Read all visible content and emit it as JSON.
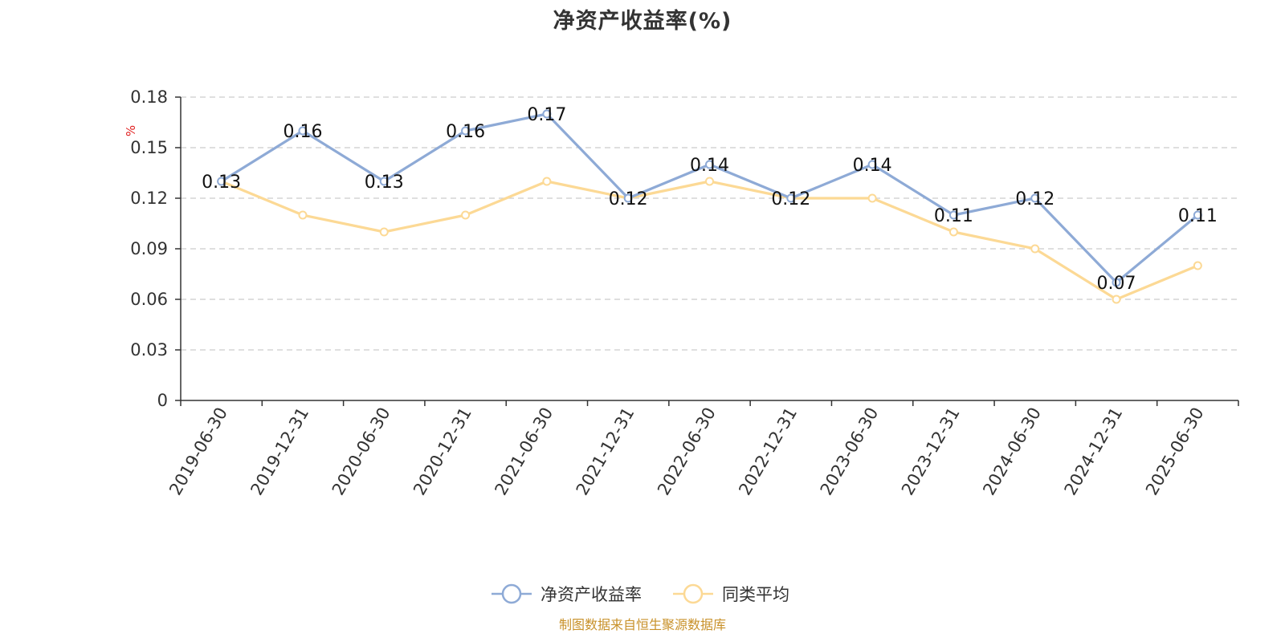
{
  "chart_data": {
    "type": "line",
    "title": "净资产收益率(%)",
    "ylabel": "%",
    "xlabel": "",
    "categories": [
      "2019-06-30",
      "2019-12-31",
      "2020-06-30",
      "2020-12-31",
      "2021-06-30",
      "2021-12-31",
      "2022-06-30",
      "2022-12-31",
      "2023-06-30",
      "2023-12-31",
      "2024-06-30",
      "2024-12-31",
      "2025-06-30"
    ],
    "series": [
      {
        "name": "净资产收益率",
        "color": "#8eaad6",
        "values": [
          0.13,
          0.16,
          0.13,
          0.16,
          0.17,
          0.12,
          0.14,
          0.12,
          0.14,
          0.11,
          0.12,
          0.07,
          0.11
        ],
        "data_labels": [
          "0.13",
          "0.16",
          "0.13",
          "0.16",
          "0.17",
          "0.12",
          "0.14",
          "0.12",
          "0.14",
          "0.11",
          "0.12",
          "0.07",
          "0.11"
        ]
      },
      {
        "name": "同类平均",
        "color": "#fcd995",
        "values": [
          0.13,
          0.11,
          0.1,
          0.11,
          0.13,
          0.12,
          0.13,
          0.12,
          0.12,
          0.1,
          0.09,
          0.06,
          0.08
        ]
      }
    ],
    "ylim": [
      0,
      0.18
    ],
    "yticks": [
      "0",
      "0.03",
      "0.06",
      "0.09",
      "0.12",
      "0.15",
      "0.18"
    ],
    "ytick_values": [
      0,
      0.03,
      0.06,
      0.09,
      0.12,
      0.15,
      0.18
    ],
    "grid": true,
    "legend_position": "bottom-center",
    "y_unit_color": "#e02020"
  },
  "source_note": "制图数据来自恒生聚源数据库"
}
